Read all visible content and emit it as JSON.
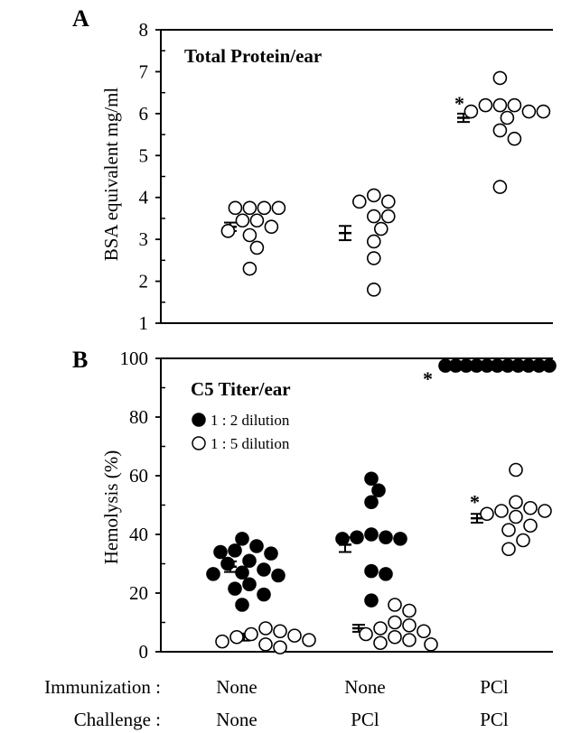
{
  "chart_data": [
    {
      "type": "scatter",
      "panel": "A",
      "title": "Total Protein/ear",
      "ylabel": "BSA equivalent mg/ml",
      "ylim": [
        1,
        8
      ],
      "yticks": [
        "1",
        "2",
        "3",
        "4",
        "5",
        "6",
        "7",
        "8"
      ],
      "groups": [
        {
          "immunization": "None",
          "challenge": "None",
          "mean": 3.3,
          "sem": 0.1,
          "values": [
            3.75,
            3.75,
            3.75,
            3.75,
            3.45,
            3.45,
            3.3,
            3.2,
            3.1,
            2.8,
            2.3
          ]
        },
        {
          "immunization": "None",
          "challenge": "PCl",
          "mean": 3.15,
          "sem": 0.17,
          "values": [
            4.05,
            3.9,
            3.9,
            3.55,
            3.55,
            3.25,
            2.95,
            2.55,
            1.8
          ]
        },
        {
          "immunization": "PCl",
          "challenge": "PCl",
          "mean": 5.9,
          "sem": 0.1,
          "star": "*",
          "values": [
            6.85,
            6.2,
            6.2,
            6.2,
            6.05,
            6.05,
            6.05,
            5.9,
            5.6,
            5.4,
            4.25
          ]
        }
      ]
    },
    {
      "type": "scatter",
      "panel": "B",
      "title": "C5 Titer/ear",
      "ylabel": "Hemolysis (%)",
      "ylim": [
        0,
        100
      ],
      "yticks": [
        "0",
        "20",
        "40",
        "60",
        "80",
        "100"
      ],
      "series": [
        {
          "name": "1 : 2 dilution",
          "marker": "filled-circle",
          "color": "#000000",
          "groups": [
            {
              "mean": 29,
              "sem": 1.8,
              "values": [
                38.5,
                36,
                34.5,
                34,
                33.5,
                31,
                30,
                28,
                27,
                26.5,
                26,
                23,
                21.5,
                19.5,
                16
              ]
            },
            {
              "mean": 36.5,
              "sem": 2.5,
              "values": [
                59,
                55,
                51,
                40,
                39,
                39,
                38.5,
                38.5,
                27.5,
                26.5,
                17.5
              ]
            },
            {
              "mean": 97.5,
              "sem": 0,
              "star": "*",
              "values": [
                97.5,
                97.5,
                97.5,
                97.5,
                97.5,
                97.5,
                97.5,
                97.5,
                97.5,
                97.5,
                97.5
              ]
            }
          ]
        },
        {
          "name": "1 : 5 dilution",
          "marker": "open-circle",
          "color": "#000000",
          "groups": [
            {
              "mean": 5,
              "sem": 1.2,
              "values": [
                8,
                7,
                6,
                5.5,
                5,
                4,
                3.5,
                2.5,
                1.5
              ]
            },
            {
              "mean": 8,
              "sem": 1.2,
              "values": [
                16,
                14,
                10,
                9,
                8,
                7,
                6,
                5,
                4,
                3,
                2.5
              ]
            },
            {
              "mean": 45.5,
              "sem": 1.5,
              "star": "*",
              "values": [
                62,
                51,
                49,
                48,
                48,
                47,
                46,
                43,
                41.5,
                38,
                35
              ]
            }
          ]
        }
      ]
    }
  ],
  "bottom": {
    "row1_label": "Immunization :",
    "row2_label": "Challenge :",
    "immunization": [
      "None",
      "None",
      "PCl"
    ],
    "challenge": [
      "None",
      "PCl",
      "PCl"
    ]
  },
  "panel_letters": [
    "A",
    "B"
  ]
}
